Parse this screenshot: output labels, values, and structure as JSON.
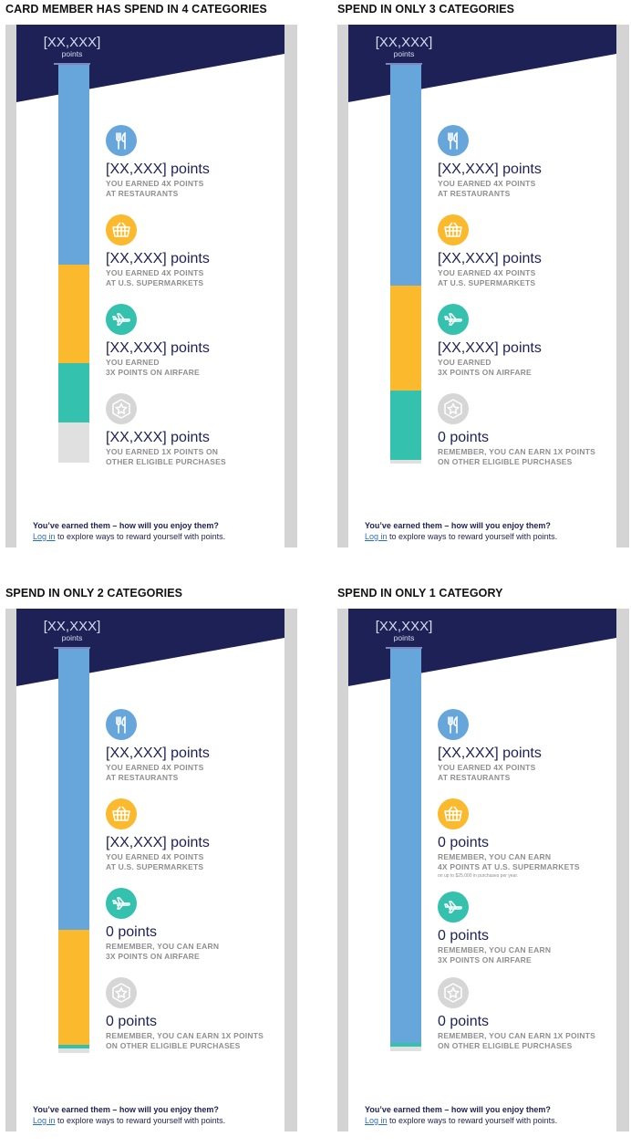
{
  "colors": {
    "navy": "#1e2156",
    "restaurants": "#67a6db",
    "supermarkets": "#fbb92d",
    "airfare": "#34c1ad",
    "other": "#e0e0e0",
    "icon_other": "#d6d6d6",
    "link": "#2a6fc0"
  },
  "variants": [
    {
      "title": "CARD MEMBER HAS SPEND IN 4 CATEGORIES",
      "total_value": "[XX,XXX]",
      "total_unit": "points",
      "bar": [
        {
          "category": "restaurants",
          "share": 0.46
        },
        {
          "category": "supermarkets",
          "share": 0.227
        },
        {
          "category": "airfare",
          "share": 0.136
        },
        {
          "category": "other",
          "share": 0.092
        }
      ],
      "categories": [
        {
          "icon": "fork-knife-icon",
          "color_key": "restaurants",
          "points": "[XX,XXX] points",
          "desc": "YOU EARNED 4X POINTS\nAT RESTAURANTS"
        },
        {
          "icon": "basket-icon",
          "color_key": "supermarkets",
          "points": "[XX,XXX] points",
          "desc": "YOU EARNED 4X POINTS\nAT U.S. SUPERMARKETS"
        },
        {
          "icon": "airplane-icon",
          "color_key": "airfare",
          "points": "[XX,XXX] points",
          "desc": "YOU EARNED\n3X POINTS ON AIRFARE"
        },
        {
          "icon": "star-hexagon-icon",
          "color_key": "icon_other",
          "points": "[XX,XXX] points",
          "desc": "YOU EARNED 1X POINTS ON\nOTHER ELIGIBLE PURCHASES"
        }
      ],
      "footer_heading": "You’ve earned them – how will you enjoy them?",
      "footer_link": "Log in",
      "footer_text": " to explore ways to reward yourself with points."
    },
    {
      "title": "SPEND IN ONLY 3 CATEGORIES",
      "total_value": "[XX,XXX]",
      "total_unit": "points",
      "bar": [
        {
          "category": "restaurants",
          "share": 0.509
        },
        {
          "category": "supermarkets",
          "share": 0.241
        },
        {
          "category": "airfare",
          "share": 0.159
        },
        {
          "category": "other",
          "share": 0.008
        }
      ],
      "categories": [
        {
          "icon": "fork-knife-icon",
          "color_key": "restaurants",
          "points": "[XX,XXX] points",
          "desc": "YOU EARNED 4X POINTS\nAT RESTAURANTS"
        },
        {
          "icon": "basket-icon",
          "color_key": "supermarkets",
          "points": "[XX,XXX] points",
          "desc": "YOU EARNED 4X POINTS\nAT U.S. SUPERMARKETS"
        },
        {
          "icon": "airplane-icon",
          "color_key": "airfare",
          "points": "[XX,XXX] points",
          "desc": "YOU EARNED\n3X POINTS ON AIRFARE"
        },
        {
          "icon": "star-hexagon-icon",
          "color_key": "icon_other",
          "points": "0 points",
          "desc": "REMEMBER, YOU CAN EARN 1X POINTS\nON OTHER ELIGIBLE PURCHASES"
        }
      ],
      "footer_heading": "You’ve earned them – how will you enjoy them?",
      "footer_link": "Log in",
      "footer_text": " to explore ways to reward yourself with points."
    },
    {
      "title": "SPEND IN ONLY 2 CATEGORIES",
      "total_value": "[XX,XXX]",
      "total_unit": "points",
      "bar": [
        {
          "category": "restaurants",
          "share": 0.647
        },
        {
          "category": "supermarkets",
          "share": 0.265
        },
        {
          "category": "airfare",
          "share": 0.008
        },
        {
          "category": "other",
          "share": 0.01
        }
      ],
      "categories": [
        {
          "icon": "fork-knife-icon",
          "color_key": "restaurants",
          "points": "[XX,XXX] points",
          "desc": "YOU EARNED 4X POINTS\nAT RESTAURANTS"
        },
        {
          "icon": "basket-icon",
          "color_key": "supermarkets",
          "points": "[XX,XXX] points",
          "desc": "YOU EARNED 4X POINTS\nAT U.S. SUPERMARKETS"
        },
        {
          "icon": "airplane-icon",
          "color_key": "airfare",
          "points": "0 points",
          "desc": "REMEMBER, YOU CAN EARN\n3X POINTS ON AIRFARE"
        },
        {
          "icon": "star-hexagon-icon",
          "color_key": "icon_other",
          "points": "0 points",
          "desc": "REMEMBER, YOU CAN EARN 1X POINTS\nON OTHER ELIGIBLE PURCHASES"
        }
      ],
      "footer_heading": "You’ve earned them – how will you enjoy them?",
      "footer_link": "Log in",
      "footer_text": " to explore ways to reward yourself with points."
    },
    {
      "title": "SPEND IN ONLY 1 CATEGORY",
      "total_value": "[XX,XXX]",
      "total_unit": "points",
      "bar": [
        {
          "category": "restaurants",
          "share": 0.908
        },
        {
          "category": "supermarkets",
          "share": 0.0
        },
        {
          "category": "airfare",
          "share": 0.008
        },
        {
          "category": "other",
          "share": 0.01
        }
      ],
      "categories": [
        {
          "icon": "fork-knife-icon",
          "color_key": "restaurants",
          "points": "[XX,XXX] points",
          "desc": "YOU EARNED 4X POINTS\nAT RESTAURANTS"
        },
        {
          "icon": "basket-icon",
          "color_key": "supermarkets",
          "points": "0 points",
          "desc": "REMEMBER, YOU CAN EARN\n4X POINTS AT U.S. SUPERMARKETS",
          "note": "on up to $25,000 in purchases per year."
        },
        {
          "icon": "airplane-icon",
          "color_key": "airfare",
          "points": "0 points",
          "desc": "REMEMBER, YOU CAN EARN\n3X POINTS ON AIRFARE"
        },
        {
          "icon": "star-hexagon-icon",
          "color_key": "icon_other",
          "points": "0 points",
          "desc": "REMEMBER, YOU CAN EARN 1X POINTS\nON OTHER ELIGIBLE PURCHASES"
        }
      ],
      "footer_heading": "You’ve earned them – how will you enjoy them?",
      "footer_link": "Log in",
      "footer_text": " to explore ways to reward yourself with points."
    }
  ]
}
